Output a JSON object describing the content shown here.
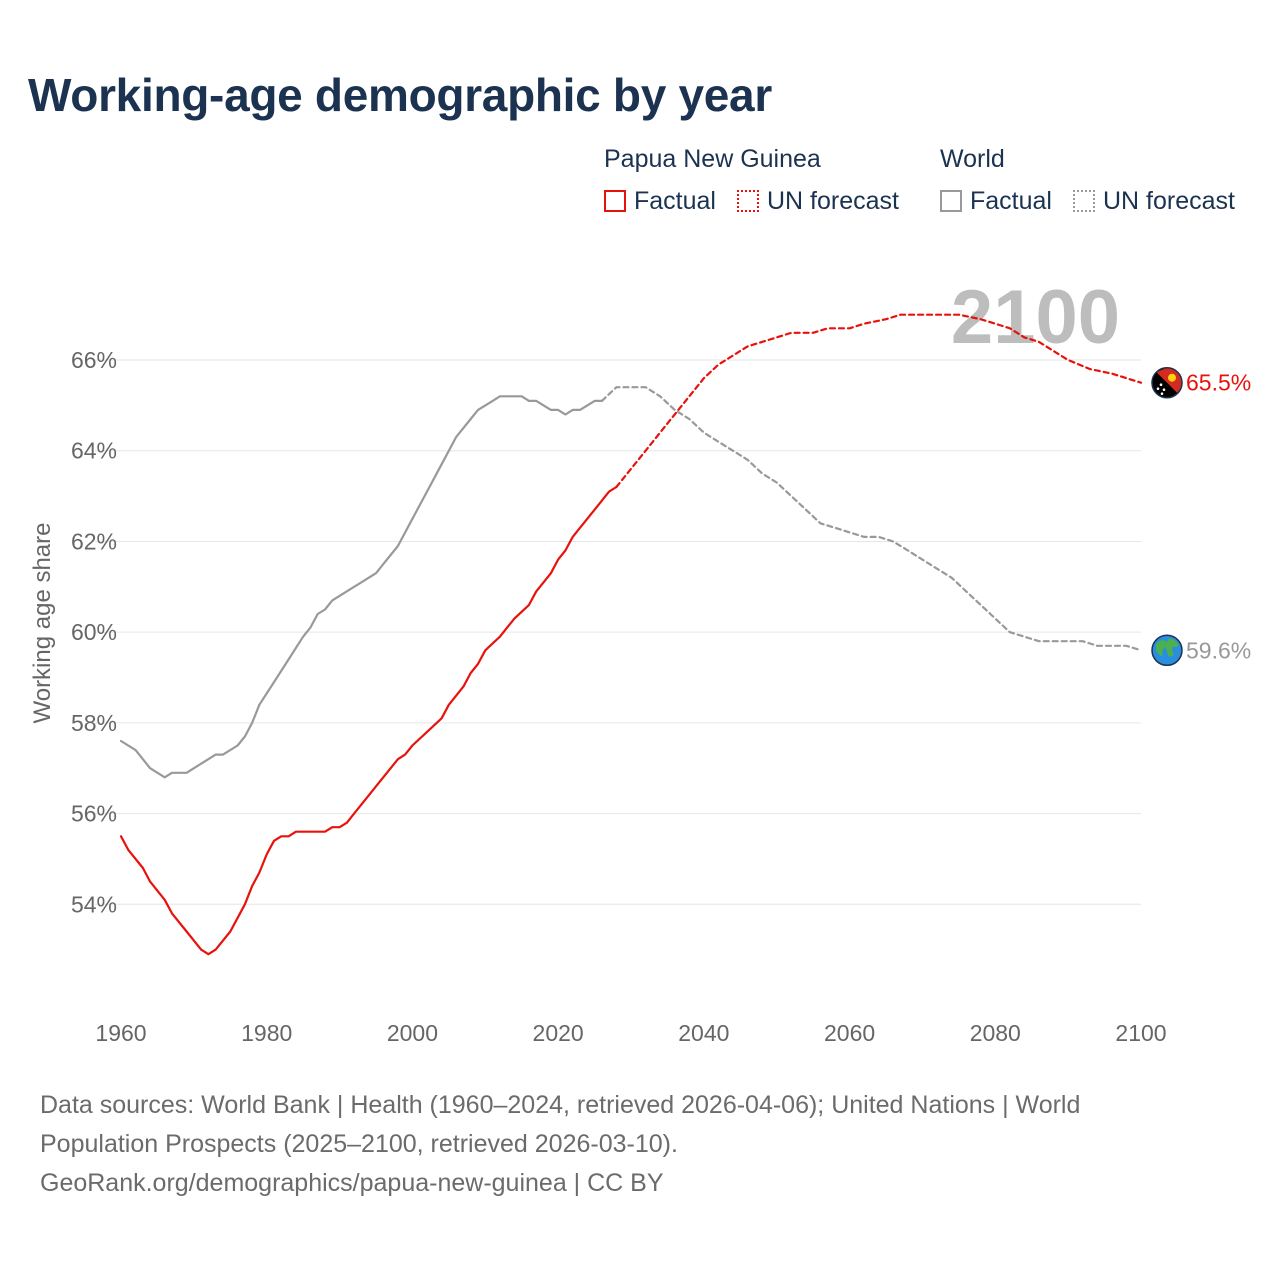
{
  "title": "Working-age demographic by year",
  "legend": {
    "png_title": "Papua New Guinea",
    "world_title": "World",
    "factual": "Factual",
    "forecast": "UN forecast"
  },
  "colors": {
    "png": "#e8120c",
    "world": "#999999",
    "grid": "#e6e6e6",
    "axis_text": "#666666"
  },
  "footer": {
    "line1": "Data sources: World Bank | Health (1960–2024, retrieved 2026-04-06); United Nations | World",
    "line2": "Population Prospects (2025–2100, retrieved 2026-03-10).",
    "line3": "GeoRank.org/demographics/papua-new-guinea | CC BY"
  },
  "chart_data": {
    "type": "line",
    "ylabel": "Working age share",
    "xlabel": "",
    "xlim": [
      1960,
      2100
    ],
    "ylim": [
      52,
      67.5
    ],
    "x_ticks": [
      1960,
      1980,
      2000,
      2020,
      2040,
      2060,
      2080,
      2100
    ],
    "y_ticks": [
      54,
      56,
      58,
      60,
      62,
      64,
      66
    ],
    "y_tick_labels": [
      "54%",
      "56%",
      "58%",
      "60%",
      "62%",
      "64%",
      "66%"
    ],
    "x_tick_labels": [
      "1960",
      "1980",
      "2000",
      "2020",
      "2040",
      "2060",
      "2080",
      "2100"
    ],
    "year_watermark": "2100",
    "series": [
      {
        "name": "Papua New Guinea",
        "style": "factual",
        "end_label": "65.5%",
        "flag_icon": "papua-new-guinea-flag-icon",
        "points": [
          [
            1960,
            55.5
          ],
          [
            1961,
            55.2
          ],
          [
            1963,
            54.8
          ],
          [
            1964,
            54.5
          ],
          [
            1966,
            54.1
          ],
          [
            1967,
            53.8
          ],
          [
            1969,
            53.4
          ],
          [
            1971,
            53.0
          ],
          [
            1972,
            52.9
          ],
          [
            1973,
            53.0
          ],
          [
            1975,
            53.4
          ],
          [
            1977,
            54.0
          ],
          [
            1978,
            54.4
          ],
          [
            1979,
            54.7
          ],
          [
            1980,
            55.1
          ],
          [
            1981,
            55.4
          ],
          [
            1982,
            55.5
          ],
          [
            1983,
            55.5
          ],
          [
            1984,
            55.6
          ],
          [
            1988,
            55.6
          ],
          [
            1989,
            55.7
          ],
          [
            1990,
            55.7
          ],
          [
            1991,
            55.8
          ],
          [
            1992,
            56.0
          ],
          [
            1994,
            56.4
          ],
          [
            1996,
            56.8
          ],
          [
            1998,
            57.2
          ],
          [
            1999,
            57.3
          ],
          [
            2000,
            57.5
          ],
          [
            2002,
            57.8
          ],
          [
            2004,
            58.1
          ],
          [
            2005,
            58.4
          ],
          [
            2007,
            58.8
          ],
          [
            2008,
            59.1
          ],
          [
            2009,
            59.3
          ],
          [
            2010,
            59.6
          ],
          [
            2012,
            59.9
          ],
          [
            2013,
            60.1
          ],
          [
            2014,
            60.3
          ],
          [
            2016,
            60.6
          ],
          [
            2017,
            60.9
          ],
          [
            2018,
            61.1
          ],
          [
            2019,
            61.3
          ],
          [
            2020,
            61.6
          ],
          [
            2021,
            61.8
          ],
          [
            2022,
            62.1
          ],
          [
            2023,
            62.3
          ],
          [
            2025,
            62.7
          ],
          [
            2026,
            62.9
          ],
          [
            2027,
            63.1
          ],
          [
            2028,
            63.2
          ]
        ]
      },
      {
        "name": "Papua New Guinea",
        "style": "forecast",
        "points": [
          [
            2028,
            63.2
          ],
          [
            2030,
            63.6
          ],
          [
            2032,
            64.0
          ],
          [
            2034,
            64.4
          ],
          [
            2036,
            64.8
          ],
          [
            2038,
            65.2
          ],
          [
            2040,
            65.6
          ],
          [
            2042,
            65.9
          ],
          [
            2044,
            66.1
          ],
          [
            2046,
            66.3
          ],
          [
            2048,
            66.4
          ],
          [
            2050,
            66.5
          ],
          [
            2052,
            66.6
          ],
          [
            2055,
            66.6
          ],
          [
            2057,
            66.7
          ],
          [
            2060,
            66.7
          ],
          [
            2062,
            66.8
          ],
          [
            2065,
            66.9
          ],
          [
            2067,
            67.0
          ],
          [
            2070,
            67.0
          ],
          [
            2075,
            67.0
          ],
          [
            2078,
            66.9
          ],
          [
            2080,
            66.8
          ],
          [
            2082,
            66.7
          ],
          [
            2084,
            66.5
          ],
          [
            2086,
            66.4
          ],
          [
            2088,
            66.2
          ],
          [
            2090,
            66.0
          ],
          [
            2093,
            65.8
          ],
          [
            2096,
            65.7
          ],
          [
            2100,
            65.5
          ]
        ]
      },
      {
        "name": "World",
        "style": "factual",
        "end_label": "59.6%",
        "flag_icon": "globe-icon",
        "points": [
          [
            1960,
            57.6
          ],
          [
            1962,
            57.4
          ],
          [
            1964,
            57.0
          ],
          [
            1966,
            56.8
          ],
          [
            1967,
            56.9
          ],
          [
            1969,
            56.9
          ],
          [
            1971,
            57.1
          ],
          [
            1973,
            57.3
          ],
          [
            1974,
            57.3
          ],
          [
            1976,
            57.5
          ],
          [
            1977,
            57.7
          ],
          [
            1978,
            58.0
          ],
          [
            1979,
            58.4
          ],
          [
            1981,
            58.9
          ],
          [
            1983,
            59.4
          ],
          [
            1985,
            59.9
          ],
          [
            1986,
            60.1
          ],
          [
            1987,
            60.4
          ],
          [
            1988,
            60.5
          ],
          [
            1989,
            60.7
          ],
          [
            1991,
            60.9
          ],
          [
            1993,
            61.1
          ],
          [
            1995,
            61.3
          ],
          [
            1996,
            61.5
          ],
          [
            1998,
            61.9
          ],
          [
            2000,
            62.5
          ],
          [
            2002,
            63.1
          ],
          [
            2004,
            63.7
          ],
          [
            2006,
            64.3
          ],
          [
            2008,
            64.7
          ],
          [
            2009,
            64.9
          ],
          [
            2011,
            65.1
          ],
          [
            2012,
            65.2
          ],
          [
            2015,
            65.2
          ],
          [
            2016,
            65.1
          ],
          [
            2017,
            65.1
          ],
          [
            2019,
            64.9
          ],
          [
            2020,
            64.9
          ],
          [
            2021,
            64.8
          ],
          [
            2022,
            64.9
          ],
          [
            2023,
            64.9
          ],
          [
            2025,
            65.1
          ],
          [
            2026,
            65.1
          ]
        ]
      },
      {
        "name": "World",
        "style": "forecast",
        "points": [
          [
            2026,
            65.1
          ],
          [
            2028,
            65.4
          ],
          [
            2030,
            65.4
          ],
          [
            2032,
            65.4
          ],
          [
            2034,
            65.2
          ],
          [
            2036,
            64.9
          ],
          [
            2038,
            64.7
          ],
          [
            2040,
            64.4
          ],
          [
            2042,
            64.2
          ],
          [
            2044,
            64.0
          ],
          [
            2046,
            63.8
          ],
          [
            2048,
            63.5
          ],
          [
            2050,
            63.3
          ],
          [
            2052,
            63.0
          ],
          [
            2054,
            62.7
          ],
          [
            2056,
            62.4
          ],
          [
            2058,
            62.3
          ],
          [
            2060,
            62.2
          ],
          [
            2062,
            62.1
          ],
          [
            2064,
            62.1
          ],
          [
            2066,
            62.0
          ],
          [
            2068,
            61.8
          ],
          [
            2070,
            61.6
          ],
          [
            2072,
            61.4
          ],
          [
            2074,
            61.2
          ],
          [
            2076,
            60.9
          ],
          [
            2078,
            60.6
          ],
          [
            2080,
            60.3
          ],
          [
            2082,
            60.0
          ],
          [
            2084,
            59.9
          ],
          [
            2086,
            59.8
          ],
          [
            2090,
            59.8
          ],
          [
            2092,
            59.8
          ],
          [
            2094,
            59.7
          ],
          [
            2098,
            59.7
          ],
          [
            2100,
            59.6
          ]
        ]
      }
    ]
  }
}
